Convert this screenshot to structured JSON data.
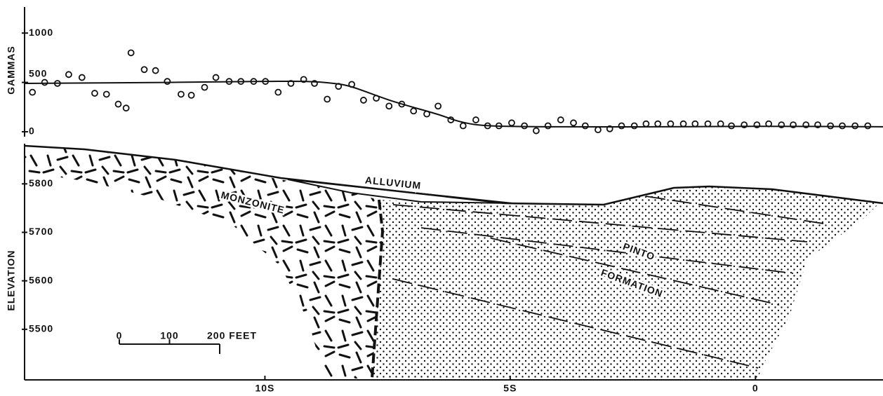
{
  "chart_data": [
    {
      "type": "scatter",
      "ylabel": "GAMMAS",
      "xlim": [
        -14.9,
        2.6
      ],
      "ylim": [
        -50,
        1250
      ],
      "yticks": [
        0,
        500,
        1000
      ],
      "color": "#111",
      "series": [
        {
          "type": "scatter",
          "x": [
            -14.74,
            -14.49,
            -14.23,
            -14.0,
            -13.73,
            -13.47,
            -13.23,
            -12.99,
            -12.83,
            -12.73,
            -12.46,
            -12.23,
            -11.99,
            -11.71,
            -11.5,
            -11.23,
            -11.0,
            -10.73,
            -10.49,
            -10.23,
            -9.99,
            -9.73,
            -9.47,
            -9.21,
            -8.99,
            -8.73,
            -8.5,
            -8.23,
            -7.99,
            -7.73,
            -7.47,
            -7.21,
            -6.97,
            -6.7,
            -6.47,
            -6.21,
            -5.96,
            -5.7,
            -5.46,
            -5.23,
            -4.97,
            -4.71,
            -4.47,
            -4.23,
            -3.97,
            -3.71,
            -3.47,
            -3.21,
            -2.97,
            -2.73,
            -2.47,
            -2.23,
            -1.99,
            -1.73,
            -1.47,
            -1.23,
            -0.97,
            -0.71,
            -0.49,
            -0.23,
            0.03,
            0.27,
            0.53,
            0.77,
            1.03,
            1.27,
            1.53,
            1.77,
            2.03,
            2.29
          ],
          "values": [
            400,
            500,
            490,
            580,
            550,
            390,
            380,
            280,
            240,
            800,
            630,
            620,
            510,
            380,
            370,
            450,
            550,
            510,
            510,
            510,
            510,
            400,
            490,
            530,
            490,
            330,
            460,
            480,
            320,
            340,
            260,
            280,
            210,
            180,
            260,
            120,
            60,
            120,
            60,
            60,
            90,
            60,
            10,
            60,
            120,
            90,
            60,
            20,
            30,
            60,
            60,
            80,
            80,
            80,
            80,
            80,
            80,
            80,
            60,
            70,
            70,
            80,
            70,
            70,
            70,
            70,
            60,
            60,
            60,
            60
          ]
        },
        {
          "type": "line",
          "x": [
            -14.9,
            -12,
            -10,
            -9.2,
            -8.6,
            -8.2,
            -7.4,
            -6.5,
            -6,
            -5.4,
            -4,
            -2,
            0,
            2.6
          ],
          "values": [
            490,
            500,
            510,
            510,
            490,
            450,
            310,
            180,
            100,
            60,
            50,
            50,
            55,
            50
          ]
        }
      ]
    },
    {
      "type": "cross-section",
      "ylabel": "ELEVATION",
      "xlim": [
        -14.9,
        2.6
      ],
      "ylim": [
        5400,
        5880
      ],
      "yticks": [
        5800,
        5700,
        5600,
        5500
      ],
      "xticks": [
        {
          "value": -10,
          "label": "10S"
        },
        {
          "value": -5,
          "label": "5S"
        },
        0
      ],
      "units": [
        "MONZONITE",
        "ALLUVIUM",
        "PINTO",
        "FORMATION"
      ],
      "scale_bar": [
        0,
        100,
        {
          "value": 200,
          "label": "200 FEET"
        }
      ]
    }
  ]
}
